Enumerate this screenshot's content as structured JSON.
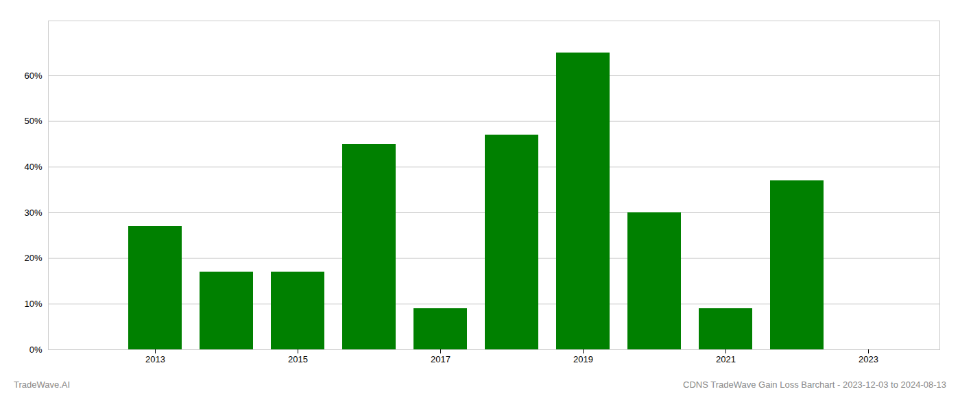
{
  "chart_data": {
    "type": "bar",
    "x": [
      2013,
      2014,
      2015,
      2016,
      2017,
      2018,
      2019,
      2020,
      2021,
      2022
    ],
    "values": [
      0.27,
      0.17,
      0.17,
      0.45,
      0.09,
      0.47,
      0.65,
      0.3,
      0.09,
      0.37
    ],
    "color": "#008000",
    "xlim": [
      2011.5,
      2024.0
    ],
    "xticks": [
      2013,
      2015,
      2017,
      2019,
      2021,
      2023
    ],
    "ylim": [
      0,
      0.72
    ],
    "yticks": [
      {
        "value": 0.0,
        "label": "0%"
      },
      {
        "value": 0.1,
        "label": "10%"
      },
      {
        "value": 0.2,
        "label": "20%"
      },
      {
        "value": 0.3,
        "label": "30%"
      },
      {
        "value": 0.4,
        "label": "40%"
      },
      {
        "value": 0.5,
        "label": "50%"
      },
      {
        "value": 0.6,
        "label": "60%"
      }
    ],
    "grid": true,
    "annotations": [
      "TradeWave.AI",
      "CDNS TradeWave Gain Loss Barchart - 2023-12-03 to 2024-08-13"
    ]
  }
}
